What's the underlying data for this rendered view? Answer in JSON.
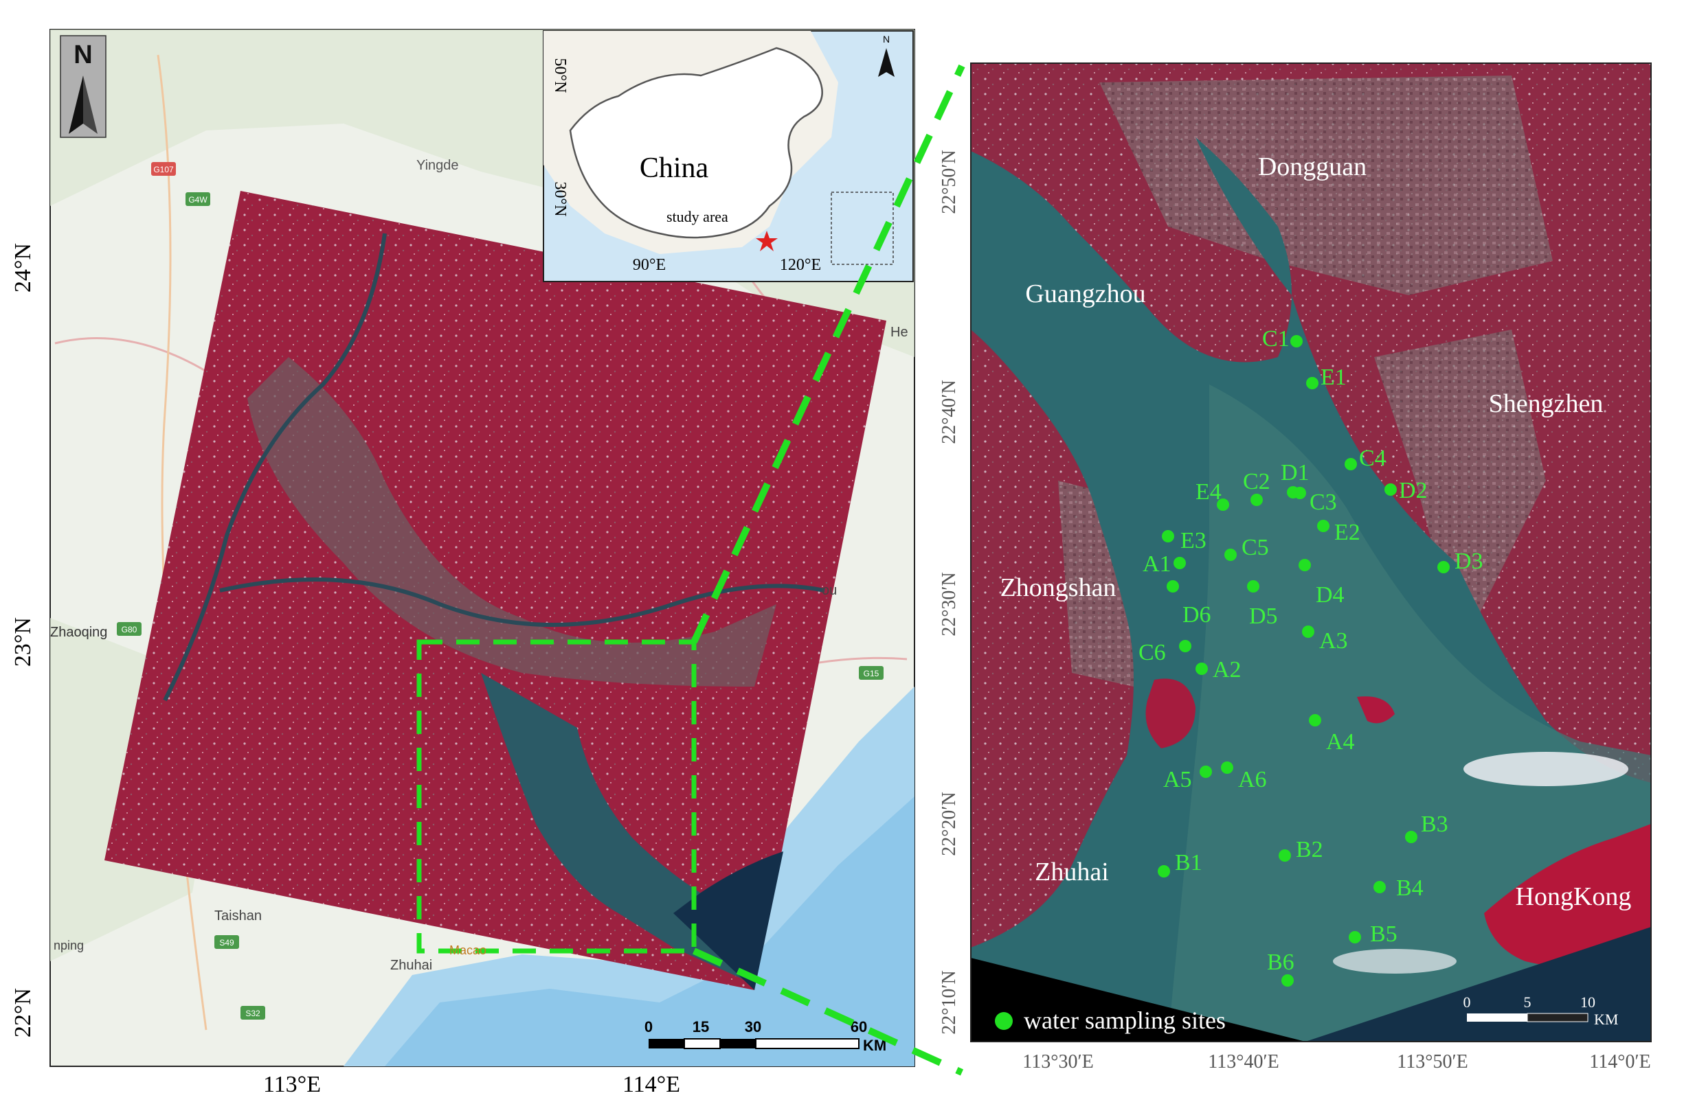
{
  "overview_map": {
    "north_label": "N",
    "lat_labels": [
      "24°N",
      "23°N",
      "22°N"
    ],
    "lon_labels": [
      "113°E",
      "114°E"
    ],
    "base_places": [
      {
        "name": "Yingde"
      },
      {
        "name": "Zhaoqing"
      },
      {
        "name": "Taishan"
      },
      {
        "name": "Zhuhai"
      },
      {
        "name": "Macao"
      },
      {
        "name": "He"
      },
      {
        "name": "nping"
      },
      {
        "name": "ou"
      }
    ],
    "road_shields": [
      "G107",
      "G4W",
      "G80",
      "G15",
      "S32",
      "S49"
    ],
    "scale_bar": {
      "ticks": [
        "0",
        "15",
        "30",
        "60"
      ],
      "unit": "KM"
    }
  },
  "inset_map": {
    "lat_labels": [
      "50°N",
      "30°N"
    ],
    "lon_labels": [
      "90°E",
      "120°E"
    ],
    "country_label": "China",
    "study_area_label": "study area",
    "north_label": "N"
  },
  "detail_map": {
    "lat_labels": [
      "22°50′N",
      "22°40′N",
      "22°30′N",
      "22°20′N",
      "22°10′N"
    ],
    "lon_labels": [
      "113°30′E",
      "113°40′E",
      "113°50′E",
      "114°0′E"
    ],
    "cities": [
      {
        "name": "Dongguan"
      },
      {
        "name": "Guangzhou"
      },
      {
        "name": "Shengzhen"
      },
      {
        "name": "Zhongshan"
      },
      {
        "name": "Zhuhai"
      },
      {
        "name": "HongKong"
      }
    ],
    "sites": [
      {
        "id": "C1"
      },
      {
        "id": "E1"
      },
      {
        "id": "C4"
      },
      {
        "id": "D1"
      },
      {
        "id": "C2"
      },
      {
        "id": "E4"
      },
      {
        "id": "C3"
      },
      {
        "id": "D2"
      },
      {
        "id": "E3"
      },
      {
        "id": "E2"
      },
      {
        "id": "C5"
      },
      {
        "id": "A1"
      },
      {
        "id": "D3"
      },
      {
        "id": "D6"
      },
      {
        "id": "D4"
      },
      {
        "id": "D5"
      },
      {
        "id": "A3"
      },
      {
        "id": "C6"
      },
      {
        "id": "A2"
      },
      {
        "id": "A4"
      },
      {
        "id": "A5"
      },
      {
        "id": "A6"
      },
      {
        "id": "B3"
      },
      {
        "id": "B2"
      },
      {
        "id": "B1"
      },
      {
        "id": "B4"
      },
      {
        "id": "B5"
      },
      {
        "id": "B6"
      }
    ],
    "legend": {
      "label": "water sampling sites",
      "marker_color": "#22e022"
    },
    "scale_bar": {
      "ticks": [
        "0",
        "5",
        "10"
      ],
      "unit": "KM"
    }
  },
  "colors": {
    "vegetation_red": "#b5173a",
    "water": "#1f5260",
    "guide_dash": "#22e022",
    "site_label": "#3ef03e"
  }
}
